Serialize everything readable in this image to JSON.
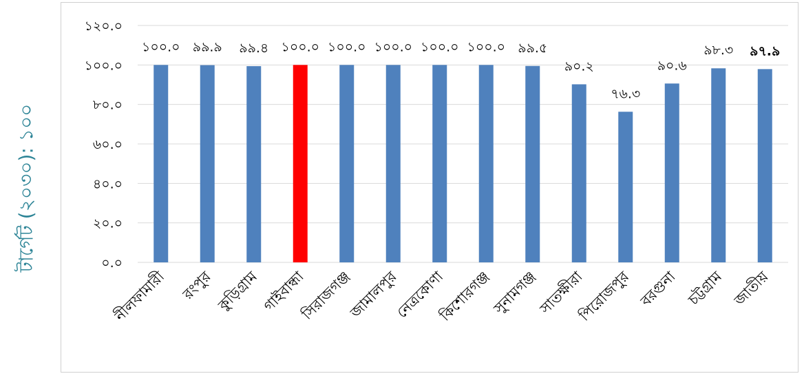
{
  "chart_data": {
    "type": "bar",
    "ylabel": "টার্গেট (২০৩০): ১০০",
    "xlabel": "",
    "ylim": [
      0,
      120
    ],
    "yticks": [
      "০.০",
      "২০.০",
      "৪০.০",
      "৬০.০",
      "৮০.০",
      "১০০.০",
      "১২০.০"
    ],
    "grid": true,
    "categories": [
      "নীলফামারী",
      "রংপুর",
      "কুড়িগ্রাম",
      "গাইবান্ধা",
      "সিরাজগঞ্জ",
      "জামালপুর",
      "নেত্রকোণা",
      "কিশোরগঞ্জ",
      "সুনামগঞ্জ",
      "সাতক্ষীরা",
      "পিরোজপুর",
      "বরগুনা",
      "চট্টগ্রাম",
      "জাতীয়"
    ],
    "values": [
      100.0,
      99.9,
      99.4,
      100.0,
      100.0,
      100.0,
      100.0,
      100.0,
      99.5,
      90.2,
      76.3,
      90.6,
      98.3,
      97.9
    ],
    "value_labels": [
      "১০০.০",
      "৯৯.৯",
      "৯৯.৪",
      "১০০.০",
      "১০০.০",
      "১০০.০",
      "১০০.০",
      "১০০.০",
      "৯৯.৫",
      "৯০.২",
      "৭৬.৩",
      "৯০.৬",
      "৯৮.৩",
      "৯৭.৯"
    ],
    "bold_labels": [
      13
    ],
    "colors": {
      "default_bar": "#4f81bd",
      "highlight_bar": "#ff0000",
      "grid": "#d9d9d9",
      "ylabel": "#2e8597"
    },
    "highlight_index": 3
  }
}
